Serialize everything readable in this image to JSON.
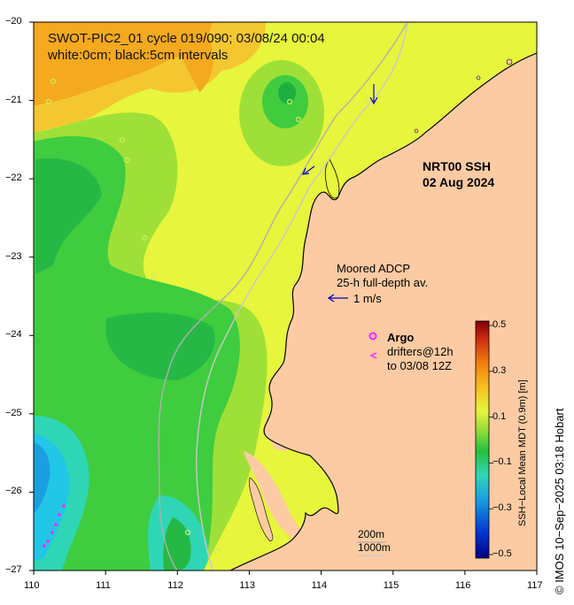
{
  "title": {
    "line1": "SWOT-PIC2_01 cycle 019/090; 03/08/24 00:04",
    "line2": "white:0cm; black:5cm intervals"
  },
  "product": {
    "name": "NRT00 SSH",
    "date": "02 Aug 2024"
  },
  "adcp": {
    "line1": "Moored ADCP",
    "line2": "25-h full-depth av.",
    "scale_label": "1 m/s"
  },
  "argo": {
    "label": "Argo",
    "drifters_line1": "drifters@12h",
    "drifters_line2": "to 03/08 12Z",
    "marker": "o",
    "drifter_marker": "<"
  },
  "isobaths": {
    "line1": "200m",
    "line2": "1000m"
  },
  "colorbar": {
    "title": "SSH−Local Mean MDT (0.9m) [m]",
    "ticks": [
      "0.5",
      "0.3",
      "0.1",
      "−0.1",
      "−0.3",
      "−0.5"
    ]
  },
  "axes": {
    "x_ticks": [
      "110",
      "111",
      "112",
      "113",
      "114",
      "115",
      "116",
      "117"
    ],
    "y_ticks": [
      "−20",
      "−21",
      "−22",
      "−23",
      "−24",
      "−25",
      "−26",
      "−27"
    ]
  },
  "credit": "© IMOS 10−Sep−2025 03:18 Hobart",
  "colors": {
    "land": "#fdcba3",
    "ocean_yellow": "#e7f53c",
    "ocean_lightgreen": "#9fe038",
    "ocean_green": "#3fcc3f",
    "ocean_darkgreen": "#25b845",
    "ocean_teal": "#2fd6b5",
    "ocean_cyan": "#22c6e6",
    "ocean_blue": "#1aa0e0",
    "ocean_orange": "#f4a91e",
    "argo_magenta": "#ff22ff",
    "adcp_arrow": "#0000cc",
    "isobath_gray": "#b0b0b0"
  }
}
